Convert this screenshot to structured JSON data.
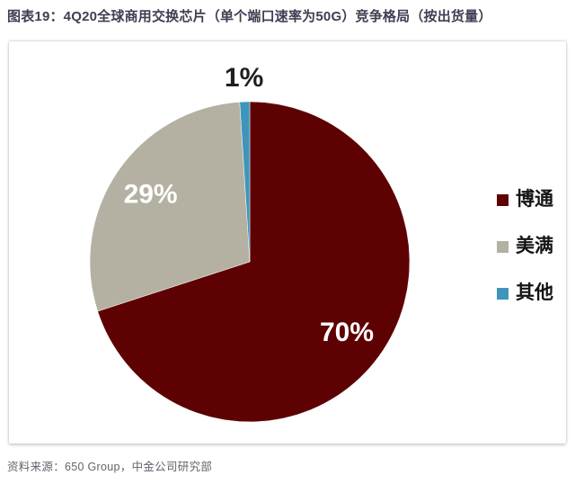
{
  "header": {
    "title": "图表19：4Q20全球商用交换芯片（单个端口速率为50G）竞争格局（按出货量）"
  },
  "chart_data": {
    "type": "pie",
    "title": "4Q20全球商用交换芯片（单个端口速率为50G）竞争格局（按出货量）",
    "start_angle_deg": 0,
    "direction": "clockwise",
    "legend_position": "right",
    "categories": [
      "博通",
      "美满",
      "其他"
    ],
    "values": [
      70,
      29,
      1
    ],
    "series": [
      {
        "label": "博通",
        "value": 70,
        "display": "70%",
        "color": "#5e0103",
        "label_color": "#ffffff"
      },
      {
        "label": "美满",
        "value": 29,
        "display": "29%",
        "color": "#b4b1a3",
        "label_color": "#ffffff"
      },
      {
        "label": "其他",
        "value": 1,
        "display": "1%",
        "color": "#3e95b9",
        "label_color": "#1f1f1f"
      }
    ]
  },
  "footer": {
    "source": "资料来源：650 Group，中金公司研究部"
  }
}
